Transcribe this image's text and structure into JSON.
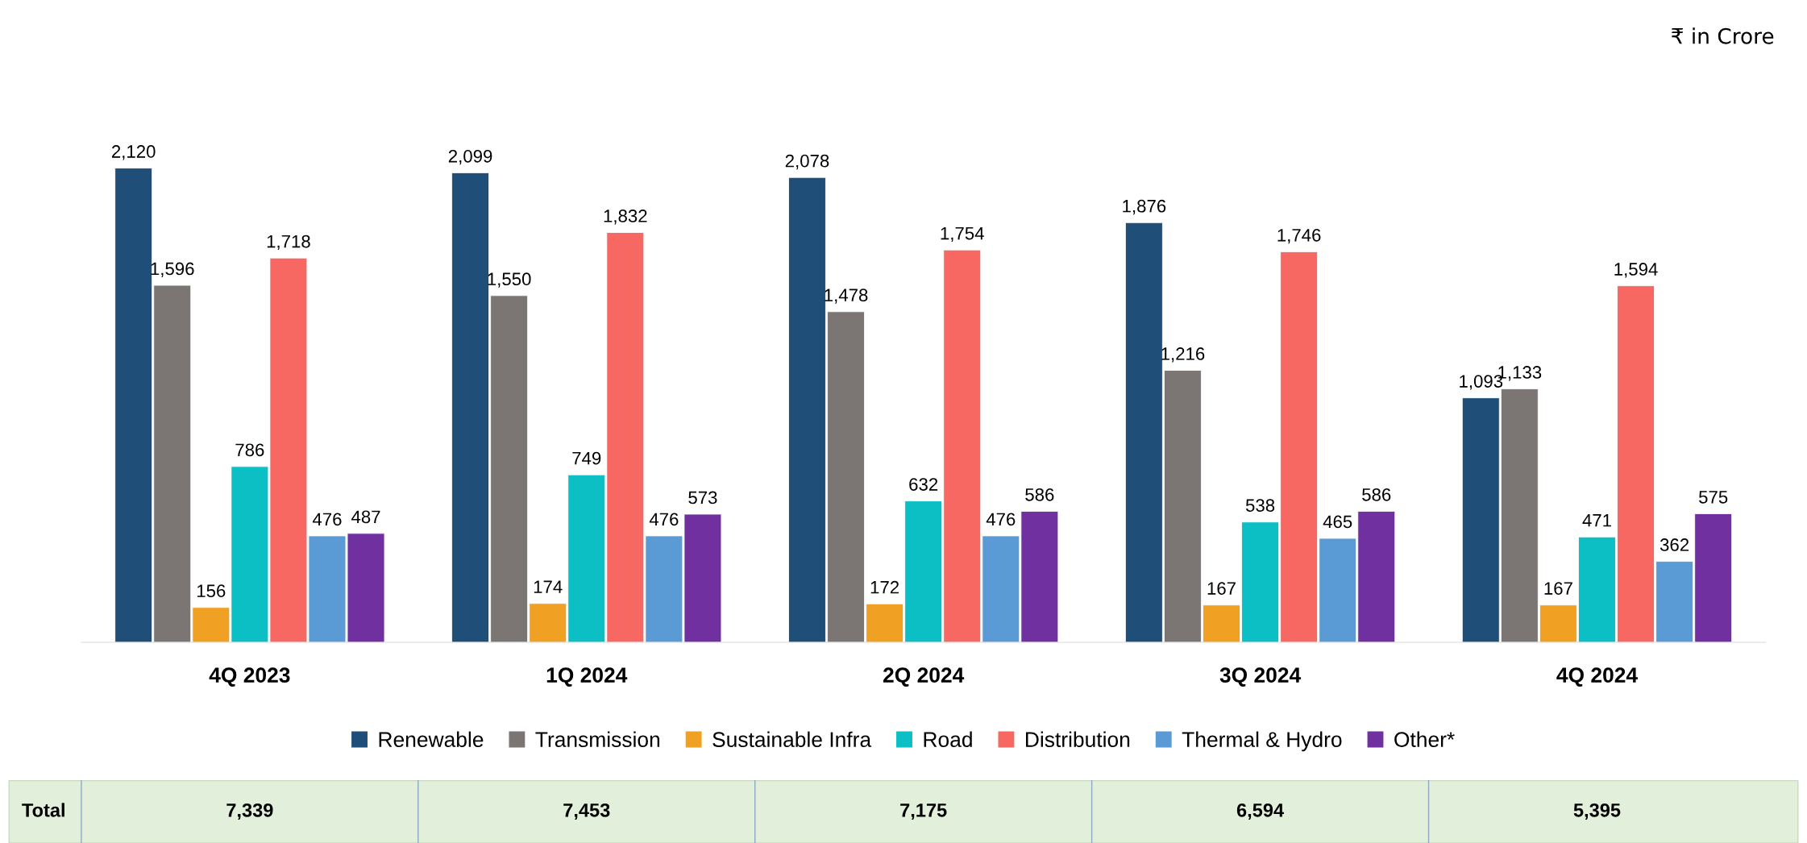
{
  "chart_data": {
    "type": "bar",
    "categories": [
      "4Q 2023",
      "1Q 2024",
      "2Q 2024",
      "3Q 2024",
      "4Q 2024"
    ],
    "series": [
      {
        "name": "Renewable",
        "color": "#1f4e79",
        "values": [
          2120,
          2099,
          2078,
          1876,
          1093
        ],
        "value_labels": [
          "2,120",
          "2,099",
          "2,078",
          "1,876",
          "1,093"
        ]
      },
      {
        "name": "Transmission",
        "color": "#7b7674",
        "values": [
          1596,
          1550,
          1478,
          1216,
          1133
        ],
        "value_labels": [
          "1,596",
          "1,550",
          "1,478",
          "1,216",
          "1,133"
        ]
      },
      {
        "name": "Sustainable Infra",
        "color": "#f0a023",
        "values": [
          156,
          174,
          172,
          167,
          167
        ],
        "value_labels": [
          "156",
          "174",
          "172",
          "167",
          "167"
        ]
      },
      {
        "name": "Road",
        "color": "#0bbfc4",
        "values": [
          786,
          749,
          632,
          538,
          471
        ],
        "value_labels": [
          "786",
          "749",
          "632",
          "538",
          "471"
        ]
      },
      {
        "name": "Distribution",
        "color": "#f76862",
        "values": [
          1718,
          1832,
          1754,
          1746,
          1594
        ],
        "value_labels": [
          "1,718",
          "1,832",
          "1,754",
          "1,746",
          "1,594"
        ]
      },
      {
        "name": "Thermal & Hydro",
        "color": "#5b9bd5",
        "values": [
          476,
          476,
          476,
          465,
          362
        ],
        "value_labels": [
          "476",
          "476",
          "476",
          "465",
          "362"
        ]
      },
      {
        "name": "Other*",
        "color": "#7030a0",
        "values": [
          487,
          573,
          586,
          586,
          575
        ],
        "value_labels": [
          "487",
          "573",
          "586",
          "586",
          "575"
        ]
      }
    ],
    "annotations": [
      "₹ in Crore",
      "Total",
      "7,339",
      "7,453",
      "7,175",
      "6,594",
      "5,395"
    ],
    "legend": "bottom",
    "grid": false
  }
}
